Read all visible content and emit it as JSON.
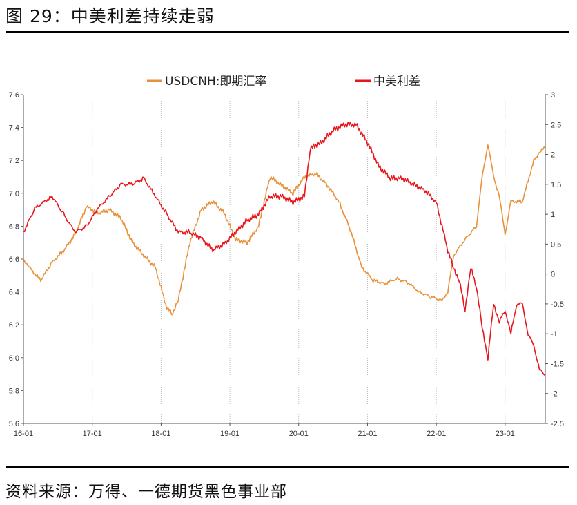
{
  "figure": {
    "title": "图 29：中美利差持续走弱",
    "source": "资料来源：万得、一德期货黑色事业部"
  },
  "chart_data": {
    "type": "line",
    "x_tick_labels": [
      "16-01",
      "17-01",
      "18-01",
      "19-01",
      "20-01",
      "21-01",
      "22-01",
      "23-01"
    ],
    "y_left": {
      "ticks": [
        "5.6",
        "5.8",
        "6.0",
        "6.2",
        "6.4",
        "6.6",
        "6.8",
        "7.0",
        "7.2",
        "7.4",
        "7.6"
      ],
      "ylim": [
        5.6,
        7.6
      ]
    },
    "y_right": {
      "ticks": [
        "-2.5",
        "-2",
        "-1.5",
        "-1",
        "-0.5",
        "0",
        "0.5",
        "1",
        "1.5",
        "2",
        "2.5",
        "3"
      ],
      "ylim": [
        -2.5,
        3
      ]
    },
    "xlim": [
      "2016-01",
      "2023-08"
    ],
    "grid": "vertical dotted lines at year ticks",
    "legend": "top-center",
    "series": [
      {
        "name": "USDCNH:即期汇率",
        "axis": "left",
        "color": "#E8913A",
        "x": [
          "2016-01",
          "2016-02",
          "2016-04",
          "2016-06",
          "2016-08",
          "2016-10",
          "2016-12",
          "2017-02",
          "2017-04",
          "2017-06",
          "2017-08",
          "2017-10",
          "2017-12",
          "2018-02",
          "2018-03",
          "2018-04",
          "2018-06",
          "2018-08",
          "2018-10",
          "2018-12",
          "2019-02",
          "2019-04",
          "2019-06",
          "2019-08",
          "2019-10",
          "2019-12",
          "2020-02",
          "2020-04",
          "2020-06",
          "2020-08",
          "2020-10",
          "2020-12",
          "2021-02",
          "2021-04",
          "2021-06",
          "2021-08",
          "2021-10",
          "2021-12",
          "2022-02",
          "2022-03",
          "2022-04",
          "2022-06",
          "2022-08",
          "2022-09",
          "2022-10",
          "2022-11",
          "2022-12",
          "2023-01",
          "2023-02",
          "2023-04",
          "2023-06",
          "2023-07",
          "2023-08"
        ],
        "values": [
          6.6,
          6.55,
          6.47,
          6.58,
          6.65,
          6.75,
          6.92,
          6.88,
          6.9,
          6.85,
          6.7,
          6.62,
          6.55,
          6.3,
          6.27,
          6.35,
          6.7,
          6.9,
          6.95,
          6.88,
          6.72,
          6.7,
          6.8,
          7.1,
          7.05,
          7.0,
          7.1,
          7.12,
          7.05,
          6.95,
          6.78,
          6.55,
          6.47,
          6.45,
          6.48,
          6.46,
          6.4,
          6.37,
          6.35,
          6.4,
          6.62,
          6.72,
          6.8,
          7.1,
          7.3,
          7.1,
          6.98,
          6.75,
          6.95,
          6.95,
          7.2,
          7.25,
          7.28
        ]
      },
      {
        "name": "中美利差",
        "axis": "right",
        "color": "#E8151B",
        "x": [
          "2016-01",
          "2016-03",
          "2016-06",
          "2016-08",
          "2016-10",
          "2016-12",
          "2017-02",
          "2017-04",
          "2017-06",
          "2017-08",
          "2017-10",
          "2017-12",
          "2018-02",
          "2018-04",
          "2018-06",
          "2018-08",
          "2018-10",
          "2018-12",
          "2019-02",
          "2019-04",
          "2019-06",
          "2019-08",
          "2019-10",
          "2019-12",
          "2020-02",
          "2020-03",
          "2020-05",
          "2020-07",
          "2020-09",
          "2020-11",
          "2021-01",
          "2021-03",
          "2021-05",
          "2021-07",
          "2021-09",
          "2021-11",
          "2022-01",
          "2022-03",
          "2022-04",
          "2022-05",
          "2022-06",
          "2022-07",
          "2022-08",
          "2022-09",
          "2022-10",
          "2022-11",
          "2022-12",
          "2023-01",
          "2023-02",
          "2023-03",
          "2023-04",
          "2023-05",
          "2023-06",
          "2023-07",
          "2023-08"
        ],
        "values": [
          0.7,
          1.1,
          1.3,
          1.0,
          0.7,
          0.8,
          1.1,
          1.3,
          1.5,
          1.5,
          1.6,
          1.3,
          1.0,
          0.7,
          0.7,
          0.6,
          0.4,
          0.5,
          0.7,
          0.9,
          1.0,
          1.3,
          1.3,
          1.2,
          1.3,
          2.1,
          2.2,
          2.4,
          2.5,
          2.5,
          2.2,
          1.8,
          1.6,
          1.6,
          1.5,
          1.4,
          1.2,
          0.4,
          0.1,
          -0.1,
          -0.6,
          0.1,
          -0.2,
          -0.9,
          -1.4,
          -0.5,
          -0.8,
          -0.6,
          -1.0,
          -0.5,
          -0.5,
          -1.0,
          -1.2,
          -1.6,
          -1.7
        ]
      }
    ]
  }
}
